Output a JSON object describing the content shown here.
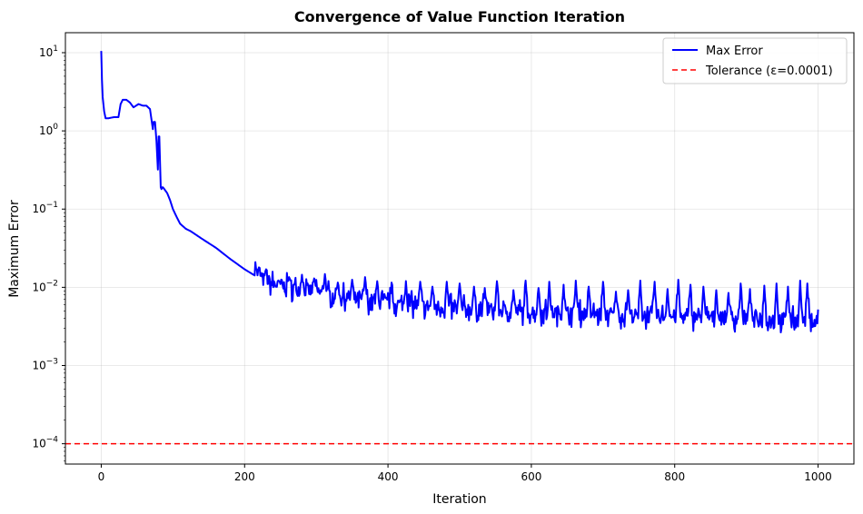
{
  "chart_data": {
    "type": "line",
    "title": "Convergence of Value Function Iteration",
    "xlabel": "Iteration",
    "ylabel": "Maximum Error",
    "yscale": "log",
    "xlim": [
      -50,
      1050
    ],
    "ylim": [
      5.5e-05,
      18
    ],
    "xticks": [
      0,
      200,
      400,
      600,
      800,
      1000
    ],
    "xtick_labels": [
      "0",
      "200",
      "400",
      "600",
      "800",
      "1000"
    ],
    "ytick_exponents": [
      -4,
      -3,
      -2,
      -1,
      0,
      1
    ],
    "grid": true,
    "legend_position": "upper right",
    "series": [
      {
        "name": "Max Error",
        "color": "#0000ff",
        "style": "solid",
        "anchors": {
          "x": [
            0,
            1,
            2,
            4,
            6,
            10,
            18,
            24,
            27,
            30,
            35,
            40,
            45,
            52,
            58,
            63,
            68,
            72,
            73,
            75,
            77,
            79,
            80,
            81,
            82,
            83,
            84,
            85,
            86,
            87,
            88,
            92,
            96,
            100,
            105,
            110,
            118,
            125,
            140,
            160,
            180,
            200,
            215,
            230,
            250,
            275,
            300,
            330,
            360,
            400,
            450,
            500,
            550,
            600,
            650,
            700,
            750,
            800,
            850,
            900,
            950,
            1000
          ],
          "y": [
            10.5,
            4.5,
            2.7,
            1.8,
            1.45,
            1.45,
            1.5,
            1.5,
            2.2,
            2.5,
            2.5,
            2.3,
            2.0,
            2.2,
            2.1,
            2.1,
            1.9,
            1.05,
            1.3,
            1.3,
            0.75,
            0.32,
            0.85,
            0.85,
            0.4,
            0.19,
            0.18,
            0.19,
            0.19,
            0.185,
            0.18,
            0.16,
            0.13,
            0.1,
            0.08,
            0.065,
            0.056,
            0.052,
            0.042,
            0.032,
            0.023,
            0.017,
            0.014,
            0.012,
            0.0105,
            0.0095,
            0.0088,
            0.0078,
            0.007,
            0.0063,
            0.0058,
            0.0054,
            0.0051,
            0.0049,
            0.0047,
            0.0045,
            0.0043,
            0.0042,
            0.0041,
            0.004,
            0.0039,
            0.0038
          ]
        },
        "noise_start": 215,
        "noise_end": 1000,
        "spike_x": [
          215,
          220,
          230,
          248,
          262,
          280,
          297,
          312,
          330,
          350,
          368,
          385,
          405,
          425,
          445,
          462,
          482,
          500,
          520,
          535,
          552,
          575,
          592,
          610,
          625,
          645,
          662,
          680,
          700,
          718,
          735,
          752,
          772,
          790,
          805,
          822,
          840,
          858,
          875,
          892,
          905,
          925,
          942,
          958,
          975,
          985
        ],
        "spike_y": [
          0.021,
          0.018,
          0.017,
          0.012,
          0.0135,
          0.0145,
          0.013,
          0.0148,
          0.0115,
          0.0125,
          0.0135,
          0.012,
          0.0115,
          0.012,
          0.0118,
          0.0102,
          0.0118,
          0.0112,
          0.0102,
          0.0098,
          0.012,
          0.0092,
          0.0122,
          0.0098,
          0.0118,
          0.0108,
          0.0122,
          0.0102,
          0.0118,
          0.0088,
          0.0092,
          0.0122,
          0.0118,
          0.0095,
          0.0125,
          0.0108,
          0.0102,
          0.0092,
          0.0085,
          0.0112,
          0.0095,
          0.0105,
          0.0112,
          0.0102,
          0.0122,
          0.0112
        ],
        "last_x": 1000,
        "last_y": 0.0052
      },
      {
        "name": "Tolerance (ε=0.0001)",
        "color": "#ff0000",
        "style": "dashed",
        "y": 0.0001
      }
    ]
  }
}
